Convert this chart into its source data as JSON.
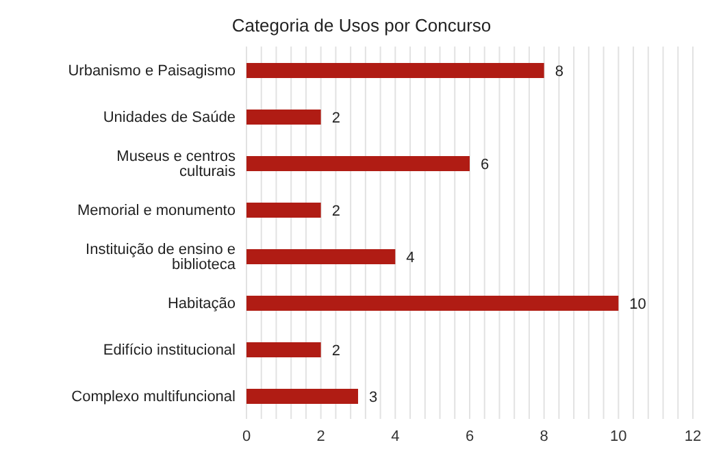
{
  "chart_data": {
    "type": "bar",
    "orientation": "horizontal",
    "title": "Categoria de Usos por Concurso",
    "categories": [
      "Urbanismo e Paisagismo",
      "Unidades de Saúde",
      "Museus e centros culturais",
      "Memorial e monumento",
      "Instituição de ensino e biblioteca",
      "Habitação",
      "Edifício institucional",
      "Complexo multifuncional"
    ],
    "values": [
      8,
      2,
      6,
      2,
      4,
      10,
      2,
      3
    ],
    "color": "#b01c14",
    "xlim": [
      0,
      12
    ],
    "xticks": [
      0,
      {
        "value": 0.4,
        "label": null
      },
      {
        "value": 0.8,
        "label": null
      },
      {
        "value": 1.2,
        "label": null
      },
      {
        "value": 1.6,
        "label": null
      },
      2,
      {
        "value": 2.4,
        "label": null
      },
      {
        "value": 2.8,
        "label": null
      },
      {
        "value": 3.2,
        "label": null
      },
      {
        "value": 3.6,
        "label": null
      },
      4,
      {
        "value": 4.4,
        "label": null
      },
      {
        "value": 4.8,
        "label": null
      },
      {
        "value": 5.2,
        "label": null
      },
      {
        "value": 5.6,
        "label": null
      },
      6,
      {
        "value": 6.4,
        "label": null
      },
      {
        "value": 6.8,
        "label": null
      },
      {
        "value": 7.2,
        "label": null
      },
      {
        "value": 7.6,
        "label": null
      },
      8,
      {
        "value": 8.4,
        "label": null
      },
      {
        "value": 8.8,
        "label": null
      },
      {
        "value": 9.2,
        "label": null
      },
      {
        "value": 9.6,
        "label": null
      },
      10,
      {
        "value": 10.4,
        "label": null
      },
      {
        "value": 10.8,
        "label": null
      },
      {
        "value": 11.2,
        "label": null
      },
      {
        "value": 11.6,
        "label": null
      },
      12
    ],
    "grid": "x",
    "data_labels": true
  }
}
